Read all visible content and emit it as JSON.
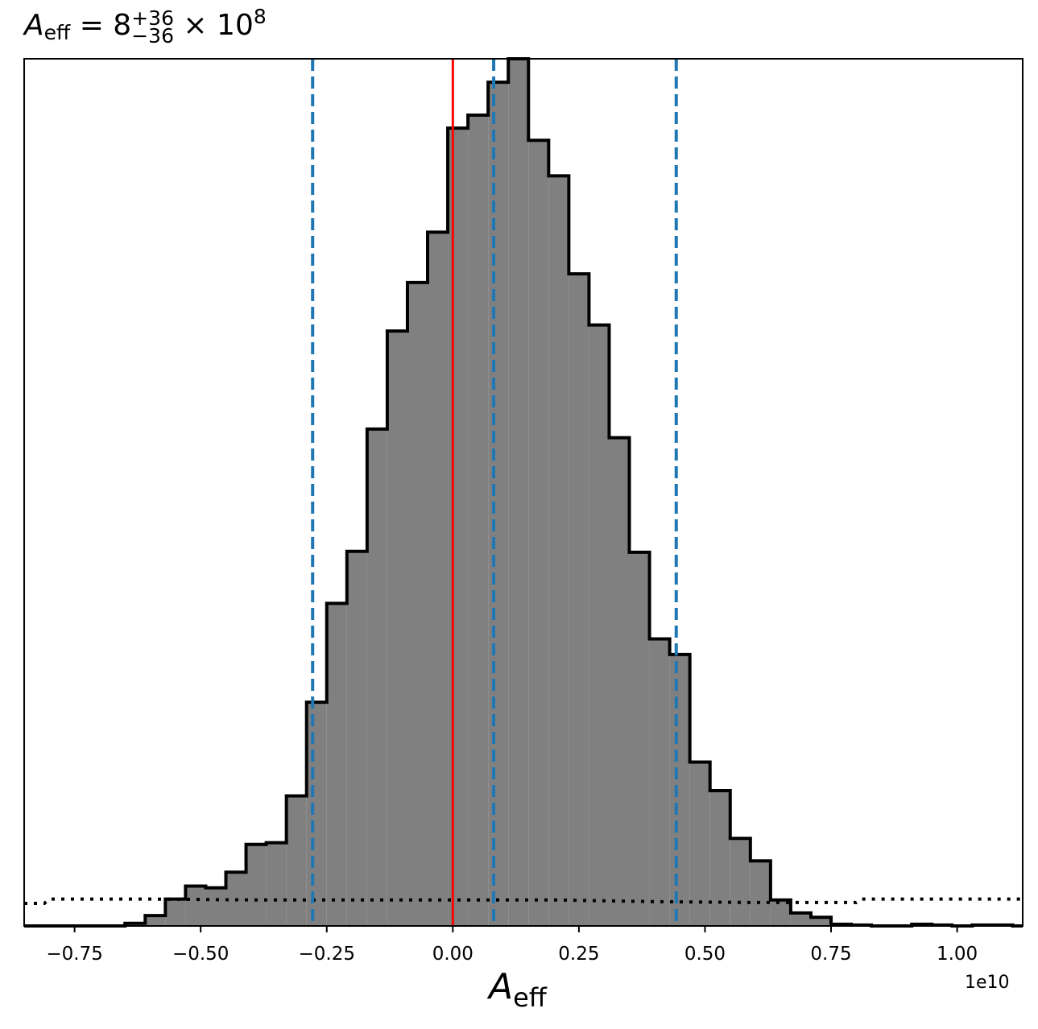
{
  "chart_data": {
    "type": "bar",
    "title": {
      "symbol": "A",
      "subscript": "eff",
      "equals": " = 8",
      "upper_error": "+36",
      "lower_error": "−36",
      "times": " × 10",
      "exponent": "8"
    },
    "xlabel": {
      "symbol": "A",
      "subscript": "eff"
    },
    "x_offset_label": "1e10",
    "xlim": [
      -0.85,
      1.13
    ],
    "ylim": [
      0,
      1.0
    ],
    "x_scale_note": "values in units of 1e10",
    "x_ticks": [
      -0.75,
      -0.5,
      -0.25,
      0.0,
      0.25,
      0.5,
      0.75,
      1.0
    ],
    "x_tick_labels": [
      "−0.75",
      "−0.50",
      "−0.25",
      "0.00",
      "0.25",
      "0.50",
      "0.75",
      "1.00"
    ],
    "histogram": {
      "bin_edges": [
        -0.85,
        -0.81,
        -0.77,
        -0.73,
        -0.69,
        -0.65,
        -0.61,
        -0.57,
        -0.53,
        -0.49,
        -0.45,
        -0.41,
        -0.37,
        -0.33,
        -0.29,
        -0.25,
        -0.21,
        -0.17,
        -0.13,
        -0.09,
        -0.05,
        -0.01,
        0.03,
        0.07,
        0.11,
        0.15,
        0.19,
        0.23,
        0.27,
        0.31,
        0.35,
        0.39,
        0.43,
        0.47,
        0.51,
        0.55,
        0.59,
        0.63,
        0.67,
        0.71,
        0.75,
        0.79,
        0.83,
        0.87,
        0.91,
        0.95,
        0.99,
        1.03,
        1.07,
        1.11,
        1.13
      ],
      "counts": [
        0,
        0,
        0,
        0,
        0,
        0.003,
        0.012,
        0.031,
        0.046,
        0.044,
        0.062,
        0.094,
        0.096,
        0.15,
        0.258,
        0.372,
        0.432,
        0.573,
        0.686,
        0.742,
        0.8,
        0.92,
        0.935,
        0.973,
        1.0,
        0.906,
        0.865,
        0.752,
        0.693,
        0.563,
        0.431,
        0.331,
        0.313,
        0.189,
        0.156,
        0.101,
        0.075,
        0.03,
        0.015,
        0.01,
        0.002,
        0.001,
        0,
        0,
        0.002,
        0.001,
        0,
        0.001,
        0.001,
        0
      ],
      "fill_color": "#808080",
      "edge_color": "#000000"
    },
    "prior": {
      "x": [
        -0.85,
        -0.81,
        -0.8,
        -0.65,
        -0.6,
        -0.4,
        -0.2,
        0.0,
        0.2,
        0.4,
        0.6,
        0.8,
        0.81,
        1.13
      ],
      "y": [
        0.026,
        0.026,
        0.031,
        0.031,
        0.031,
        0.03,
        0.03,
        0.03,
        0.03,
        0.028,
        0.027,
        0.027,
        0.031,
        0.031
      ],
      "style": "dotted",
      "color": "#000000"
    },
    "truth_line": {
      "x": 0.0,
      "color": "#ff0000"
    },
    "quantile_lines": {
      "x": [
        -0.278,
        0.081,
        0.443
      ],
      "color": "#1f77b4",
      "style": "dashed"
    },
    "grid": false,
    "y_ticks_shown": false
  }
}
